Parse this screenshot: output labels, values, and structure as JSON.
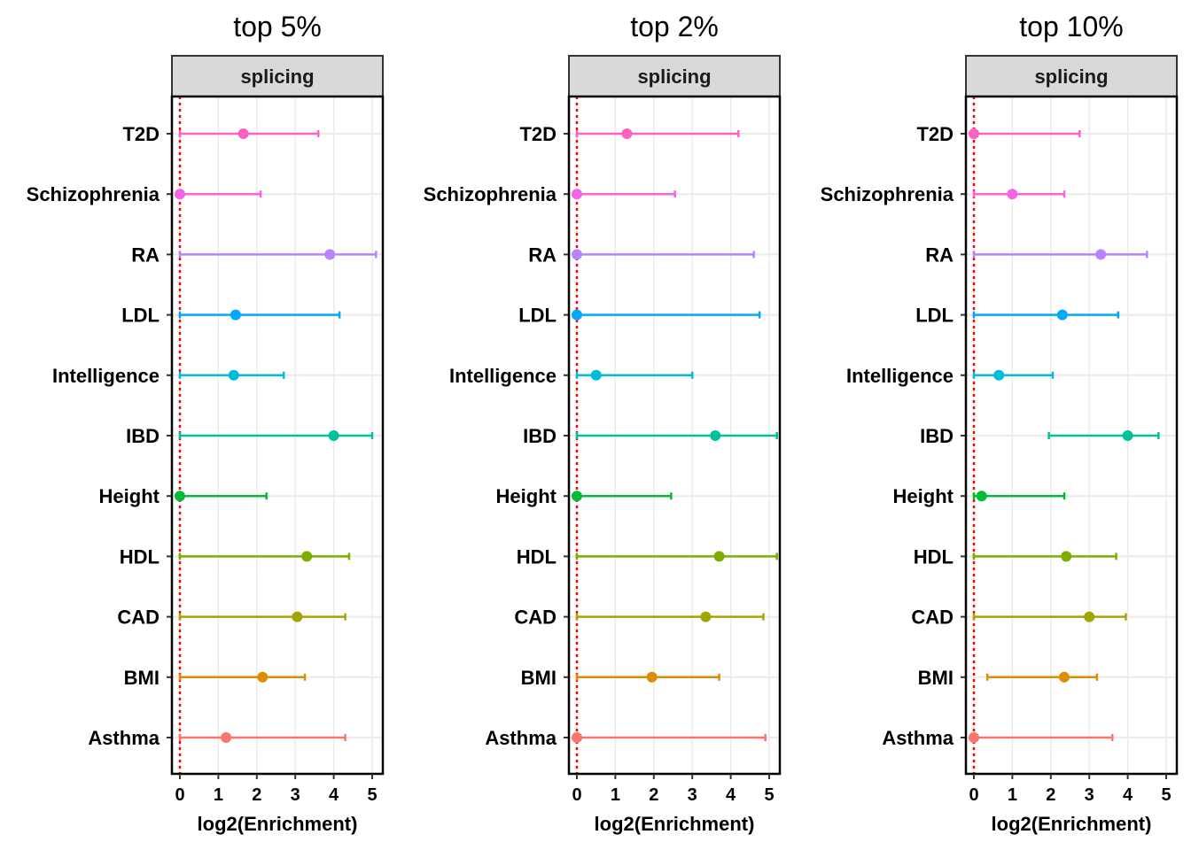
{
  "chart_data": [
    {
      "type": "scatter",
      "title": "top 5%",
      "strip": "splicing",
      "xlabel": "log2(Enrichment)",
      "ylabel": "",
      "xlim": [
        -0.2,
        5.3
      ],
      "xticks": [
        "0",
        "1",
        "2",
        "3",
        "4",
        "5"
      ],
      "reference_line": {
        "x": 0,
        "style": "dotted",
        "color": "#ff0000"
      },
      "grid": true,
      "legend": "none",
      "categories": [
        "T2D",
        "Schizophrenia",
        "RA",
        "LDL",
        "Intelligence",
        "IBD",
        "Height",
        "HDL",
        "CAD",
        "BMI",
        "Asthma"
      ],
      "series": [
        {
          "values": [
            1.65,
            0.0,
            3.9,
            1.45,
            1.4,
            4.0,
            0.0,
            3.3,
            3.05,
            2.15,
            1.2
          ],
          "lower": [
            0,
            0,
            0,
            0,
            0,
            0,
            0,
            0,
            0,
            0,
            0
          ],
          "upper": [
            3.6,
            2.1,
            5.1,
            4.15,
            2.7,
            5.0,
            2.25,
            4.4,
            4.3,
            3.25,
            4.3
          ]
        }
      ]
    },
    {
      "type": "scatter",
      "title": "top 2%",
      "strip": "splicing",
      "xlabel": "log2(Enrichment)",
      "ylabel": "",
      "xlim": [
        -0.2,
        5.3
      ],
      "xticks": [
        "0",
        "1",
        "2",
        "3",
        "4",
        "5"
      ],
      "reference_line": {
        "x": 0,
        "style": "dotted",
        "color": "#ff0000"
      },
      "grid": true,
      "legend": "none",
      "categories": [
        "T2D",
        "Schizophrenia",
        "RA",
        "LDL",
        "Intelligence",
        "IBD",
        "Height",
        "HDL",
        "CAD",
        "BMI",
        "Asthma"
      ],
      "series": [
        {
          "values": [
            1.3,
            0.0,
            0.0,
            0.0,
            0.5,
            3.6,
            0.0,
            3.7,
            3.35,
            1.95,
            0.0
          ],
          "lower": [
            0,
            0,
            0,
            0,
            0,
            0,
            0,
            0,
            0,
            0,
            0
          ],
          "upper": [
            4.2,
            2.55,
            4.6,
            4.75,
            3.0,
            5.2,
            2.45,
            5.2,
            4.85,
            3.7,
            4.9
          ]
        }
      ]
    },
    {
      "type": "scatter",
      "title": "top 10%",
      "strip": "splicing",
      "xlabel": "log2(Enrichment)",
      "ylabel": "",
      "xlim": [
        -0.2,
        5.3
      ],
      "xticks": [
        "0",
        "1",
        "2",
        "3",
        "4",
        "5"
      ],
      "reference_line": {
        "x": 0,
        "style": "dotted",
        "color": "#ff0000"
      },
      "grid": true,
      "legend": "none",
      "categories": [
        "T2D",
        "Schizophrenia",
        "RA",
        "LDL",
        "Intelligence",
        "IBD",
        "Height",
        "HDL",
        "CAD",
        "BMI",
        "Asthma"
      ],
      "series": [
        {
          "values": [
            0.0,
            1.0,
            3.3,
            2.3,
            0.65,
            4.0,
            0.2,
            2.4,
            3.0,
            2.35,
            0.0
          ],
          "lower": [
            0,
            0,
            0,
            0,
            0,
            1.95,
            0,
            0,
            0,
            0.35,
            0
          ],
          "upper": [
            2.75,
            2.35,
            4.5,
            3.75,
            2.05,
            4.8,
            2.35,
            3.7,
            3.95,
            3.2,
            3.6
          ]
        }
      ]
    }
  ],
  "category_colors": {
    "T2D": "#ff61c3",
    "Schizophrenia": "#f564e3",
    "RA": "#b983ff",
    "LDL": "#00a9ff",
    "Intelligence": "#00bcd8",
    "IBD": "#00c19a",
    "Height": "#00ba38",
    "HDL": "#7cae00",
    "CAD": "#a3a500",
    "BMI": "#de8c00",
    "Asthma": "#f8766d"
  },
  "panel_background": "#ffffff",
  "strip_background": "#d9d9d9",
  "gridline_color": "#ebebeb"
}
